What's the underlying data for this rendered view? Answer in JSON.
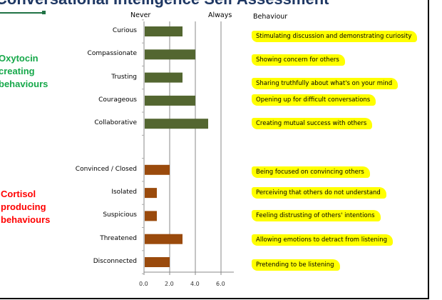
{
  "title": "Conversational Intelligence Self Assessment",
  "groups": {
    "oxytocin": "Oxytocin creating behaviours",
    "cortisol": "Cortisol producing behaviours"
  },
  "colors": {
    "oxytocin_bar": "#536630",
    "cortisol_bar": "#9a4a0c",
    "oxytocin_text": "#16a84a",
    "cortisol_text": "#ff0000",
    "highlight": "#ffff00"
  },
  "chart_data": {
    "type": "bar",
    "orientation": "horizontal",
    "header_left": "Never",
    "header_right": "Always",
    "behaviour_header": "Behaviour",
    "categories": [
      "Curious",
      "Compassionate",
      "Trusting",
      "Courageous",
      "Collaborative",
      "",
      "Convinced / Closed",
      "Isolated",
      "Suspicious",
      "Threatened",
      "Disconnected"
    ],
    "values": [
      3,
      4,
      3,
      4,
      5,
      null,
      2,
      1,
      1,
      3,
      2
    ],
    "group": [
      "oxytocin",
      "oxytocin",
      "oxytocin",
      "oxytocin",
      "oxytocin",
      null,
      "cortisol",
      "cortisol",
      "cortisol",
      "cortisol",
      "cortisol"
    ],
    "behaviours": [
      "Stimulating discussion and demonstrating curiosity",
      "Showing concern for others",
      "Sharing truthfully about what's on your mind",
      "Opening up for difficult conversations",
      "Creating mutual success with others",
      "",
      "Being focused on convincing others",
      "Perceiving that others do not understand",
      "Feeling distrusting of others' intentions",
      "Allowing emotions to detract from listening",
      "Pretending to be listening"
    ],
    "xticks": [
      "0.0",
      "2.0",
      "4.0",
      "6.0"
    ],
    "xlim": [
      0,
      7
    ],
    "grid": true
  }
}
